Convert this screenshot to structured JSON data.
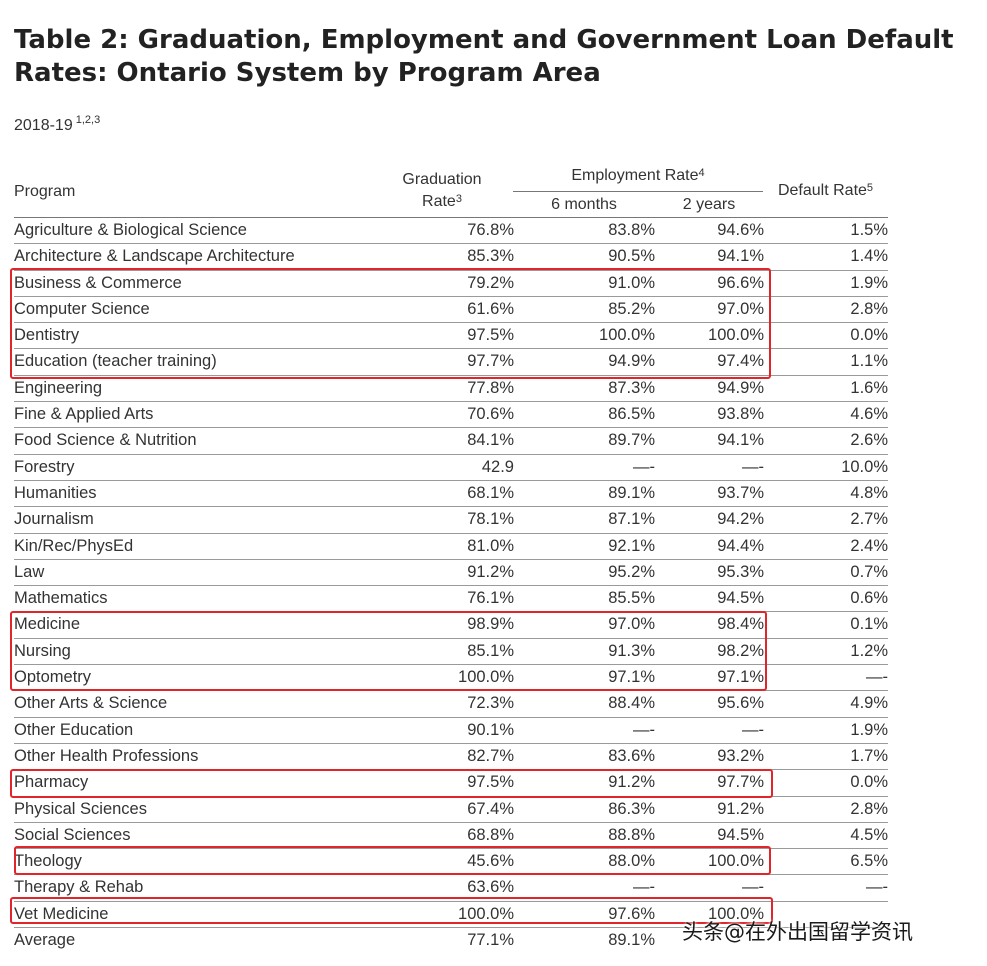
{
  "title": "Table 2: Graduation, Employment and Government Loan Default Rates: Ontario System by Program Area",
  "subtitle": {
    "year": "2018-19",
    "notes": "1,2,3"
  },
  "headers": {
    "program": "Program",
    "grad_line1": "Graduation",
    "grad_line2": "Rate",
    "grad_note": "3",
    "employment": "Employment Rate",
    "employment_note": "4",
    "six_months": "6 months",
    "two_years": "2 years",
    "default": "Default Rate",
    "default_note": "5"
  },
  "rows": [
    {
      "program": "Agriculture & Biological Science",
      "grad": "76.8%",
      "m6": "83.8%",
      "y2": "94.6%",
      "def": "1.5%"
    },
    {
      "program": "Architecture & Landscape Architecture",
      "grad": "85.3%",
      "m6": "90.5%",
      "y2": "94.1%",
      "def": "1.4%"
    },
    {
      "program": "Business & Commerce",
      "grad": "79.2%",
      "m6": "91.0%",
      "y2": "96.6%",
      "def": "1.9%"
    },
    {
      "program": "Computer Science",
      "grad": "61.6%",
      "m6": "85.2%",
      "y2": "97.0%",
      "def": "2.8%"
    },
    {
      "program": "Dentistry",
      "grad": "97.5%",
      "m6": "100.0%",
      "y2": "100.0%",
      "def": "0.0%"
    },
    {
      "program": "Education (teacher training)",
      "grad": "97.7%",
      "m6": "94.9%",
      "y2": "97.4%",
      "def": "1.1%"
    },
    {
      "program": "Engineering",
      "grad": "77.8%",
      "m6": "87.3%",
      "y2": "94.9%",
      "def": "1.6%"
    },
    {
      "program": "Fine & Applied Arts",
      "grad": "70.6%",
      "m6": "86.5%",
      "y2": "93.8%",
      "def": "4.6%"
    },
    {
      "program": "Food Science & Nutrition",
      "grad": "84.1%",
      "m6": "89.7%",
      "y2": "94.1%",
      "def": "2.6%"
    },
    {
      "program": "Forestry",
      "grad": "42.9",
      "m6": "—-",
      "y2": "—-",
      "def": "10.0%"
    },
    {
      "program": "Humanities",
      "grad": "68.1%",
      "m6": "89.1%",
      "y2": "93.7%",
      "def": "4.8%"
    },
    {
      "program": "Journalism",
      "grad": "78.1%",
      "m6": "87.1%",
      "y2": "94.2%",
      "def": "2.7%"
    },
    {
      "program": "Kin/Rec/PhysEd",
      "grad": "81.0%",
      "m6": "92.1%",
      "y2": "94.4%",
      "def": "2.4%"
    },
    {
      "program": "Law",
      "grad": "91.2%",
      "m6": "95.2%",
      "y2": "95.3%",
      "def": "0.7%"
    },
    {
      "program": "Mathematics",
      "grad": "76.1%",
      "m6": "85.5%",
      "y2": "94.5%",
      "def": "0.6%"
    },
    {
      "program": "Medicine",
      "grad": "98.9%",
      "m6": "97.0%",
      "y2": "98.4%",
      "def": "0.1%"
    },
    {
      "program": "Nursing",
      "grad": "85.1%",
      "m6": "91.3%",
      "y2": "98.2%",
      "def": "1.2%"
    },
    {
      "program": "Optometry",
      "grad": "100.0%",
      "m6": "97.1%",
      "y2": "97.1%",
      "def": "—-"
    },
    {
      "program": "Other Arts & Science",
      "grad": "72.3%",
      "m6": "88.4%",
      "y2": "95.6%",
      "def": "4.9%"
    },
    {
      "program": "Other Education",
      "grad": "90.1%",
      "m6": "—-",
      "y2": "—-",
      "def": "1.9%"
    },
    {
      "program": "Other Health Professions",
      "grad": "82.7%",
      "m6": "83.6%",
      "y2": "93.2%",
      "def": "1.7%"
    },
    {
      "program": "Pharmacy",
      "grad": "97.5%",
      "m6": "91.2%",
      "y2": "97.7%",
      "def": "0.0%"
    },
    {
      "program": "Physical Sciences",
      "grad": "67.4%",
      "m6": "86.3%",
      "y2": "91.2%",
      "def": "2.8%"
    },
    {
      "program": "Social Sciences",
      "grad": "68.8%",
      "m6": "88.8%",
      "y2": "94.5%",
      "def": "4.5%"
    },
    {
      "program": "Theology",
      "grad": "45.6%",
      "m6": "88.0%",
      "y2": "100.0%",
      "def": "6.5%"
    },
    {
      "program": "Therapy & Rehab",
      "grad": "63.6%",
      "m6": "—-",
      "y2": "—-",
      "def": "—-"
    },
    {
      "program": "Vet Medicine",
      "grad": "100.0%",
      "m6": "97.6%",
      "y2": "100.0%",
      "def": ""
    },
    {
      "program": "Average",
      "grad": "77.1%",
      "m6": "89.1%",
      "y2": "",
      "def": ""
    }
  ],
  "highlight_color": "#e0262b",
  "watermark": "头条@在外出国留学资讯"
}
